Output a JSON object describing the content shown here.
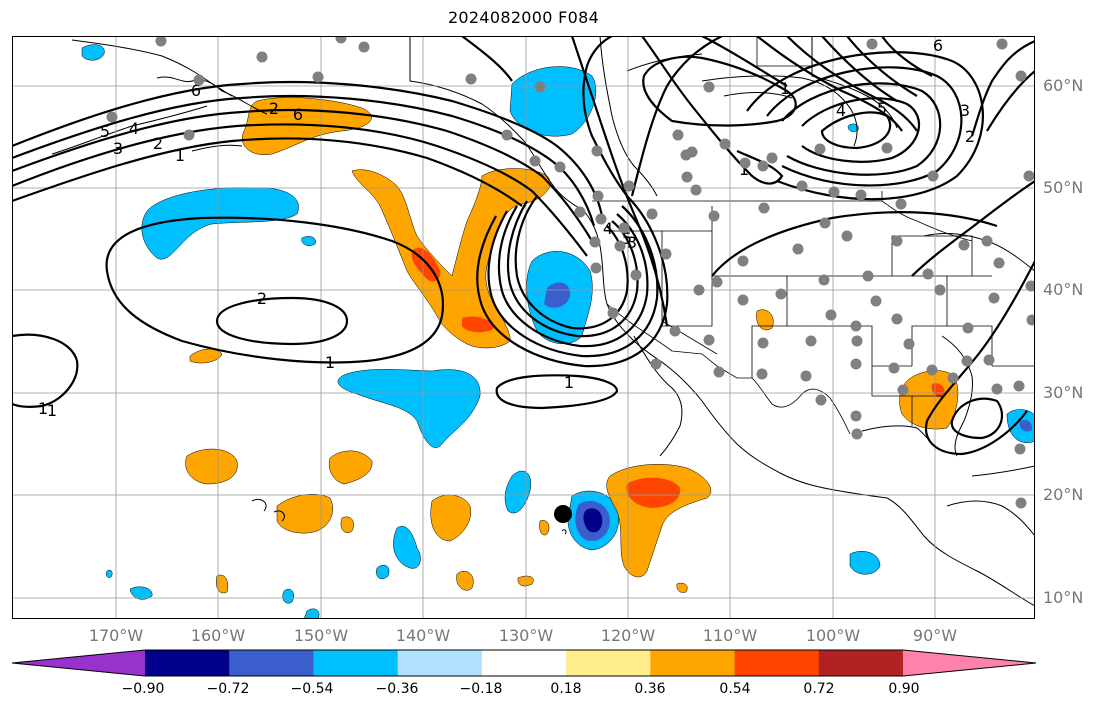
{
  "title": "2024082000 F084",
  "lat_labels": [
    "60°N",
    "50°N",
    "40°N",
    "30°N",
    "20°N",
    "10°N"
  ],
  "lon_labels": [
    "170°W",
    "160°W",
    "150°W",
    "140°W",
    "130°W",
    "120°W",
    "110°W",
    "100°W",
    "90°W"
  ],
  "colorbar": {
    "colors": [
      "#9932cc",
      "#00008b",
      "#3a5fcd",
      "#00bfff",
      "#b0e2ff",
      "#ffffff",
      "#ffec8b",
      "#ffa500",
      "#ff4500",
      "#b22222",
      "#ff82ab"
    ],
    "tick_labels": [
      "−0.90",
      "−0.72",
      "−0.54",
      "−0.36",
      "−0.18",
      "0.18",
      "0.36",
      "0.54",
      "0.72",
      "0.90"
    ]
  },
  "contour_labels": [
    "6",
    "5",
    "4",
    "3",
    "2",
    "1",
    "2",
    "1",
    "1",
    "1",
    "1",
    "5",
    "4",
    "6",
    "5",
    "4",
    "3",
    "2",
    "1",
    "1",
    "2",
    "3",
    "6"
  ]
}
